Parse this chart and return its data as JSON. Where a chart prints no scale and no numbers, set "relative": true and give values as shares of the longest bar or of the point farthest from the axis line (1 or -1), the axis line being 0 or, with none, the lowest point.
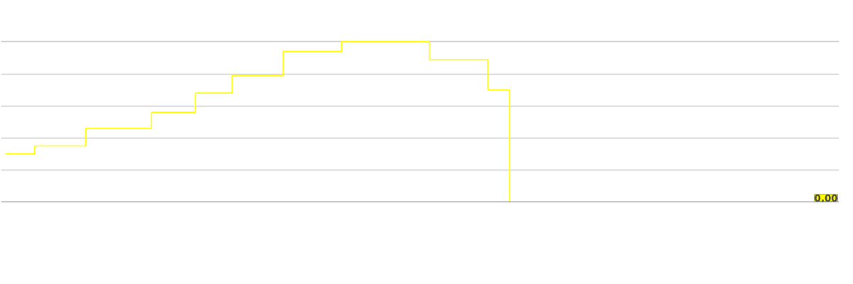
{
  "chart_data": {
    "type": "step",
    "relative": true,
    "grid": "y",
    "color": "#ffff00",
    "categories": [
      null,
      null,
      null,
      null,
      null,
      null,
      null,
      null,
      null,
      null,
      null,
      null,
      null,
      null,
      null,
      null,
      null,
      null,
      null,
      null,
      null,
      null,
      null,
      null,
      null,
      null,
      null,
      null,
      null,
      null,
      null,
      null,
      null,
      null,
      null,
      null,
      null,
      null,
      null,
      null,
      null,
      null,
      null,
      null,
      null,
      null,
      null,
      null,
      null,
      null,
      null,
      null,
      null,
      null,
      null,
      null,
      null,
      null,
      null,
      null,
      null,
      null,
      null,
      null,
      null,
      null,
      null,
      null,
      null,
      null
    ],
    "values": [
      0.3,
      0.3,
      0.3,
      0.3,
      0.35,
      0.35,
      0.35,
      0.35,
      0.35,
      0.35,
      0.35,
      0.46,
      0.46,
      0.46,
      0.46,
      0.46,
      0.46,
      0.46,
      0.46,
      0.46,
      0.56,
      0.56,
      0.56,
      0.56,
      0.56,
      0.56,
      0.68,
      0.68,
      0.68,
      0.68,
      0.68,
      0.79,
      0.79,
      0.79,
      0.79,
      0.79,
      0.79,
      0.79,
      0.94,
      0.94,
      0.94,
      0.94,
      0.94,
      0.94,
      0.94,
      0.94,
      1.0,
      1.0,
      1.0,
      1.0,
      1.0,
      1.0,
      1.0,
      1.0,
      1.0,
      1.0,
      1.0,
      1.0,
      0.89,
      0.89,
      0.89,
      0.89,
      0.89,
      0.89,
      0.89,
      0.89,
      0.7,
      0.7,
      0.7,
      0
    ],
    "annotations": [
      "0,00"
    ]
  }
}
